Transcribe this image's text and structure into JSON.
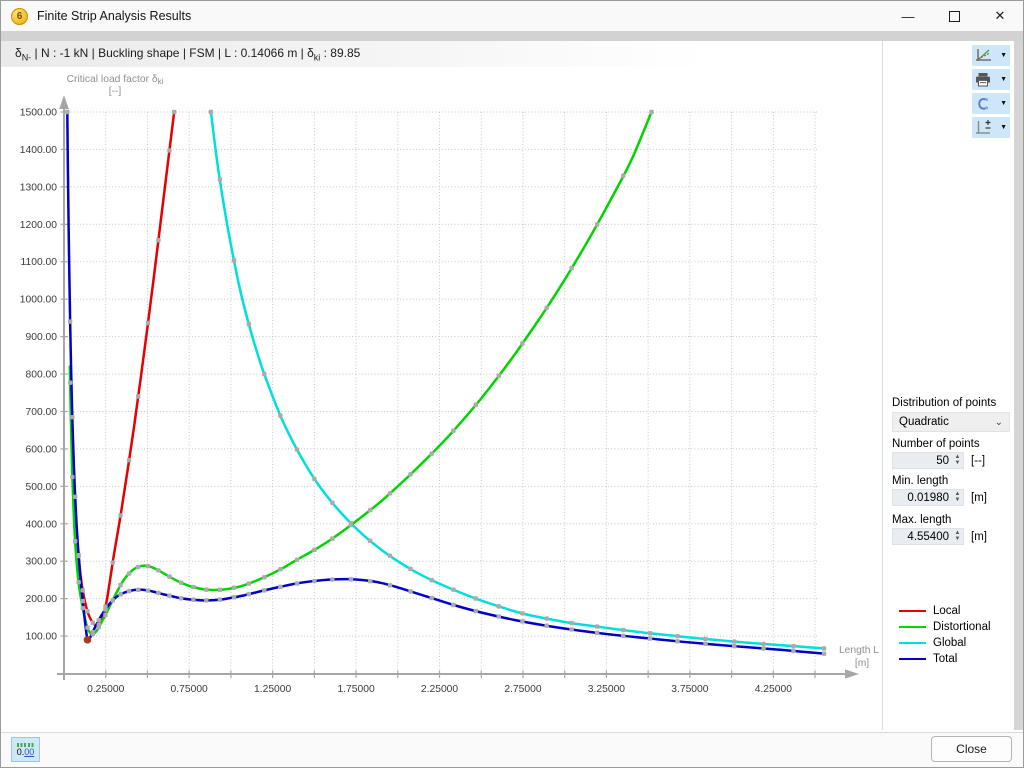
{
  "window": {
    "title": "Finite Strip Analysis Results"
  },
  "icons": {
    "app_badge": "6",
    "minimize": "—",
    "close": "✕",
    "dropdown": "▼",
    "combo_chevron": "⌄",
    "spin_up": "▲",
    "spin_down": "▼"
  },
  "header": {
    "delta1": "δ",
    "sub1": "N-",
    "mid": " | N : -1 kN | Buckling shape | FSM | L : 0.14066 m | δ",
    "sub2": "ki",
    "tail": " : 89.85"
  },
  "toolbar": {
    "buttons": [
      {
        "name": "diagram-settings",
        "icon": "chart-lines-icon"
      },
      {
        "name": "print",
        "icon": "printer-icon"
      },
      {
        "name": "curve",
        "icon": "spline-c-icon"
      },
      {
        "name": "axis-scale",
        "icon": "axes-plus-minus-icon"
      }
    ]
  },
  "panel": {
    "distribution_label": "Distribution of points",
    "distribution_value": "Quadratic",
    "points_label": "Number of points",
    "points_value": "50",
    "points_unit": "[--]",
    "min_label": "Min. length",
    "min_value": "0.01980",
    "min_unit": "[m]",
    "max_label": "Max. length",
    "max_value": "4.55400",
    "max_unit": "[m]"
  },
  "legend": {
    "items": [
      {
        "label": "Local",
        "color": "#e60000"
      },
      {
        "label": "Distortional",
        "color": "#00d500"
      },
      {
        "label": "Global",
        "color": "#00dede"
      },
      {
        "label": "Total",
        "color": "#0000c8"
      }
    ]
  },
  "footer": {
    "units_left": "0.",
    "units_right": "00",
    "close_label": "Close"
  },
  "chart_data": {
    "type": "line",
    "title": "",
    "xlabel": "Length L",
    "xlabel_unit": "[m]",
    "ylabel_main": "Critical load factor δ",
    "ylabel_sub": "ki",
    "ylabel_unit": "[--]",
    "x_axis": {
      "grid_start": 0.25,
      "grid_step": 0.25,
      "grid_end": 4.5,
      "label_start": 0.25,
      "label_step": 0.5,
      "label_end": 4.25,
      "decimals": 5
    },
    "y_axis": {
      "min": 100,
      "max": 1500,
      "step": 100,
      "decimals": 2
    },
    "grid": true,
    "legend_position": "right",
    "marker_color": "#ababab",
    "points_distribution": {
      "type": "quadratic",
      "count": 50,
      "min_length": 0.0198,
      "max_length": 4.554
    },
    "current_point": {
      "L": 0.14066,
      "value": 89.85,
      "color": "#a33b25"
    },
    "series": [
      {
        "name": "Local",
        "color": "#e60000",
        "top_marker_L": 0.66,
        "anchors": [
          [
            0.085,
            330
          ],
          [
            0.095,
            280
          ],
          [
            0.105,
            242
          ],
          [
            0.115,
            215
          ],
          [
            0.13,
            183
          ],
          [
            0.145,
            160
          ],
          [
            0.16,
            145
          ],
          [
            0.175,
            134
          ],
          [
            0.19,
            129
          ],
          [
            0.205,
            128
          ],
          [
            0.22,
            135
          ],
          [
            0.24,
            160
          ],
          [
            0.26,
            205
          ],
          [
            0.28,
            262
          ],
          [
            0.3,
            320
          ],
          [
            0.34,
            425
          ],
          [
            0.38,
            540
          ],
          [
            0.42,
            660
          ],
          [
            0.46,
            790
          ],
          [
            0.5,
            925
          ],
          [
            0.54,
            1065
          ],
          [
            0.58,
            1210
          ],
          [
            0.62,
            1355
          ],
          [
            0.66,
            1500
          ]
        ]
      },
      {
        "name": "Global",
        "color": "#00dede",
        "top_marker_L": 0.88,
        "anchors": [
          [
            0.88,
            1500
          ],
          [
            0.92,
            1360
          ],
          [
            0.96,
            1245
          ],
          [
            1.0,
            1145
          ],
          [
            1.05,
            1035
          ],
          [
            1.1,
            945
          ],
          [
            1.15,
            868
          ],
          [
            1.2,
            800
          ],
          [
            1.3,
            685
          ],
          [
            1.4,
            595
          ],
          [
            1.5,
            520
          ],
          [
            1.6,
            460
          ],
          [
            1.7,
            410
          ],
          [
            1.8,
            367
          ],
          [
            1.9,
            331
          ],
          [
            2.0,
            300
          ],
          [
            2.1,
            273
          ],
          [
            2.2,
            250
          ],
          [
            2.3,
            230
          ],
          [
            2.45,
            203
          ],
          [
            2.6,
            180
          ],
          [
            2.75,
            160
          ],
          [
            2.9,
            146
          ],
          [
            3.05,
            134
          ],
          [
            3.2,
            125
          ],
          [
            3.35,
            116
          ],
          [
            3.5,
            108
          ],
          [
            3.65,
            101
          ],
          [
            3.8,
            94
          ],
          [
            3.95,
            88
          ],
          [
            4.1,
            82
          ],
          [
            4.25,
            77
          ],
          [
            4.4,
            72
          ],
          [
            4.554,
            67
          ]
        ]
      },
      {
        "name": "Distortional",
        "color": "#00d500",
        "top_marker_L": 3.52,
        "anchors": [
          [
            0.035,
            820
          ],
          [
            0.04,
            700
          ],
          [
            0.05,
            525
          ],
          [
            0.06,
            408
          ],
          [
            0.07,
            330
          ],
          [
            0.08,
            275
          ],
          [
            0.09,
            235
          ],
          [
            0.1,
            205
          ],
          [
            0.11,
            180
          ],
          [
            0.12,
            158
          ],
          [
            0.13,
            138
          ],
          [
            0.14,
            123
          ],
          [
            0.15,
            113
          ],
          [
            0.16,
            107
          ],
          [
            0.17,
            105
          ],
          [
            0.18,
            107
          ],
          [
            0.19,
            111
          ],
          [
            0.2,
            117
          ],
          [
            0.22,
            133
          ],
          [
            0.25,
            158
          ],
          [
            0.28,
            185
          ],
          [
            0.31,
            212
          ],
          [
            0.34,
            237
          ],
          [
            0.37,
            257
          ],
          [
            0.4,
            272
          ],
          [
            0.43,
            282
          ],
          [
            0.46,
            287
          ],
          [
            0.49,
            288
          ],
          [
            0.52,
            285
          ],
          [
            0.56,
            277
          ],
          [
            0.6,
            267
          ],
          [
            0.65,
            254
          ],
          [
            0.7,
            243
          ],
          [
            0.75,
            234
          ],
          [
            0.8,
            228
          ],
          [
            0.85,
            224
          ],
          [
            0.9,
            223
          ],
          [
            0.95,
            224
          ],
          [
            1.0,
            227
          ],
          [
            1.05,
            232
          ],
          [
            1.1,
            239
          ],
          [
            1.2,
            257
          ],
          [
            1.3,
            279
          ],
          [
            1.4,
            305
          ],
          [
            1.5,
            330
          ],
          [
            1.6,
            358
          ],
          [
            1.7,
            390
          ],
          [
            1.8,
            424
          ],
          [
            1.9,
            460
          ],
          [
            2.0,
            500
          ],
          [
            2.1,
            542
          ],
          [
            2.2,
            586
          ],
          [
            2.3,
            632
          ],
          [
            2.4,
            682
          ],
          [
            2.5,
            735
          ],
          [
            2.6,
            792
          ],
          [
            2.7,
            852
          ],
          [
            2.8,
            916
          ],
          [
            2.9,
            982
          ],
          [
            3.0,
            1052
          ],
          [
            3.1,
            1126
          ],
          [
            3.2,
            1204
          ],
          [
            3.3,
            1286
          ],
          [
            3.4,
            1372
          ],
          [
            3.52,
            1500
          ]
        ]
      },
      {
        "name": "Total",
        "color": "#0000c8",
        "top_marker_L": 0.0198,
        "anchors": [
          [
            0.0198,
            1500
          ],
          [
            0.022,
            1400
          ],
          [
            0.025,
            1290
          ],
          [
            0.028,
            1185
          ],
          [
            0.032,
            1065
          ],
          [
            0.037,
            935
          ],
          [
            0.042,
            825
          ],
          [
            0.048,
            715
          ],
          [
            0.055,
            610
          ],
          [
            0.065,
            490
          ],
          [
            0.075,
            400
          ],
          [
            0.085,
            330
          ],
          [
            0.095,
            272
          ],
          [
            0.105,
            225
          ],
          [
            0.115,
            182
          ],
          [
            0.125,
            142
          ],
          [
            0.133,
            112
          ],
          [
            0.1407,
            89.85
          ],
          [
            0.15,
            92
          ],
          [
            0.16,
            99
          ],
          [
            0.17,
            108
          ],
          [
            0.18,
            118
          ],
          [
            0.19,
            127
          ],
          [
            0.2,
            135
          ],
          [
            0.22,
            152
          ],
          [
            0.25,
            172
          ],
          [
            0.28,
            190
          ],
          [
            0.31,
            203
          ],
          [
            0.34,
            212
          ],
          [
            0.38,
            219
          ],
          [
            0.42,
            223
          ],
          [
            0.46,
            224
          ],
          [
            0.5,
            222
          ],
          [
            0.55,
            217
          ],
          [
            0.6,
            211
          ],
          [
            0.65,
            206
          ],
          [
            0.7,
            201
          ],
          [
            0.75,
            198
          ],
          [
            0.8,
            196
          ],
          [
            0.85,
            195
          ],
          [
            0.9,
            196
          ],
          [
            0.95,
            198
          ],
          [
            1.0,
            202
          ],
          [
            1.05,
            206
          ],
          [
            1.1,
            211
          ],
          [
            1.2,
            222
          ],
          [
            1.3,
            232
          ],
          [
            1.4,
            241
          ],
          [
            1.5,
            247
          ],
          [
            1.6,
            251
          ],
          [
            1.7,
            252
          ],
          [
            1.8,
            249
          ],
          [
            1.9,
            242
          ],
          [
            2.0,
            230
          ],
          [
            2.1,
            216
          ],
          [
            2.2,
            202
          ],
          [
            2.35,
            181
          ],
          [
            2.5,
            163
          ],
          [
            2.7,
            143
          ],
          [
            2.9,
            127
          ],
          [
            3.1,
            114
          ],
          [
            3.3,
            103
          ],
          [
            3.5,
            94
          ],
          [
            3.7,
            85
          ],
          [
            3.9,
            77
          ],
          [
            4.1,
            70
          ],
          [
            4.3,
            63
          ],
          [
            4.554,
            53
          ]
        ]
      }
    ]
  }
}
